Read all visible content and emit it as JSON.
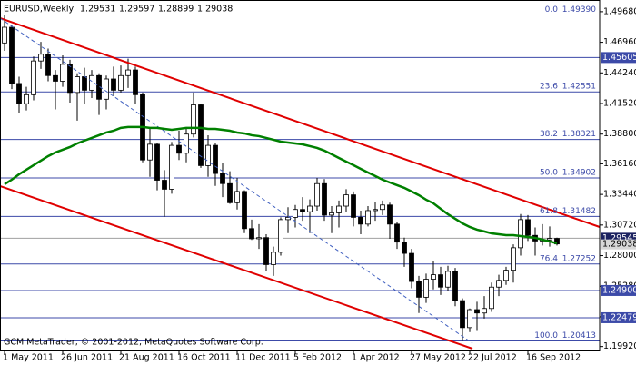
{
  "chart_data": {
    "type": "candlestick",
    "title": "EURUSD,Weekly",
    "watermark": "GCM MetaTrader, © 2001-2012, MetaQuotes Software Corp.",
    "categories": [
      "1 May 2011",
      null,
      null,
      null,
      null,
      null,
      null,
      null,
      "26 Jun 2011",
      null,
      null,
      null,
      null,
      null,
      null,
      null,
      "21 Aug 2011",
      null,
      null,
      null,
      null,
      null,
      null,
      null,
      "16 Oct 2011",
      null,
      null,
      null,
      null,
      null,
      null,
      null,
      "11 Dec 2011",
      null,
      null,
      null,
      null,
      null,
      null,
      null,
      "5 Feb 2012",
      null,
      null,
      null,
      null,
      null,
      null,
      null,
      "1 Apr 2012",
      null,
      null,
      null,
      null,
      null,
      null,
      null,
      "27 May 2012",
      null,
      null,
      null,
      null,
      null,
      null,
      null,
      "22 Jul 2012",
      null,
      null,
      null,
      null,
      null,
      null,
      null,
      "16 Sep 2012",
      null,
      null,
      null,
      null
    ],
    "open": [
      1.469,
      1.483,
      1.433,
      1.415,
      1.423,
      1.453,
      1.459,
      1.44,
      1.435,
      1.45,
      1.425,
      1.439,
      1.427,
      1.44,
      1.419,
      1.437,
      1.427,
      1.44,
      1.445,
      1.423,
      1.365,
      1.379,
      1.347,
      1.339,
      1.378,
      1.371,
      1.388,
      1.414,
      1.36,
      1.378,
      1.353,
      1.344,
      1.327,
      1.337,
      1.304,
      1.295,
      1.296,
      1.272,
      1.283,
      1.312,
      1.314,
      1.321,
      1.319,
      1.324,
      1.344,
      1.316,
      1.318,
      1.324,
      1.334,
      1.314,
      1.308,
      1.32,
      1.321,
      1.325,
      1.308,
      1.292,
      1.282,
      1.257,
      1.243,
      1.259,
      1.263,
      1.252,
      1.266,
      1.24,
      1.216,
      1.232,
      1.229,
      1.233,
      1.252,
      1.258,
      1.267,
      1.287,
      1.312,
      1.298,
      1.293,
      1.294,
      1.29531
    ],
    "high": [
      1.4939,
      1.485,
      1.439,
      1.43,
      1.457,
      1.47,
      1.464,
      1.445,
      1.458,
      1.454,
      1.442,
      1.447,
      1.445,
      1.442,
      1.44,
      1.448,
      1.449,
      1.455,
      1.448,
      1.425,
      1.394,
      1.38,
      1.356,
      1.381,
      1.391,
      1.394,
      1.425,
      1.415,
      1.387,
      1.38,
      1.362,
      1.355,
      1.349,
      1.338,
      1.312,
      1.308,
      1.299,
      1.288,
      1.314,
      1.323,
      1.325,
      1.332,
      1.33,
      1.349,
      1.348,
      1.324,
      1.329,
      1.339,
      1.337,
      1.32,
      1.324,
      1.328,
      1.329,
      1.327,
      1.31,
      1.296,
      1.286,
      1.262,
      1.264,
      1.275,
      1.27,
      1.271,
      1.269,
      1.242,
      1.233,
      1.239,
      1.244,
      1.256,
      1.263,
      1.27,
      1.29,
      1.317,
      1.316,
      1.305,
      1.308,
      1.306,
      1.29597
    ],
    "low": [
      1.462,
      1.428,
      1.407,
      1.409,
      1.418,
      1.446,
      1.435,
      1.41,
      1.43,
      1.416,
      1.4,
      1.415,
      1.42,
      1.405,
      1.41,
      1.422,
      1.425,
      1.429,
      1.415,
      1.363,
      1.35,
      1.338,
      1.3145,
      1.335,
      1.365,
      1.363,
      1.385,
      1.358,
      1.35,
      1.342,
      1.332,
      1.326,
      1.321,
      1.3,
      1.294,
      1.286,
      1.266,
      1.262,
      1.28,
      1.3,
      1.305,
      1.311,
      1.3,
      1.32,
      1.311,
      1.3,
      1.305,
      1.319,
      1.306,
      1.299,
      1.306,
      1.311,
      1.316,
      1.295,
      1.286,
      1.27,
      1.251,
      1.229,
      1.238,
      1.25,
      1.245,
      1.249,
      1.235,
      1.2041,
      1.212,
      1.213,
      1.224,
      1.23,
      1.244,
      1.254,
      1.256,
      1.28,
      1.293,
      1.28,
      1.289,
      1.288,
      1.28899
    ],
    "close": [
      1.483,
      1.433,
      1.415,
      1.423,
      1.453,
      1.459,
      1.44,
      1.435,
      1.45,
      1.425,
      1.439,
      1.427,
      1.44,
      1.419,
      1.437,
      1.427,
      1.44,
      1.445,
      1.423,
      1.365,
      1.379,
      1.347,
      1.339,
      1.378,
      1.371,
      1.388,
      1.414,
      1.36,
      1.378,
      1.353,
      1.344,
      1.327,
      1.337,
      1.304,
      1.295,
      1.296,
      1.272,
      1.283,
      1.312,
      1.314,
      1.321,
      1.319,
      1.324,
      1.344,
      1.316,
      1.318,
      1.324,
      1.334,
      1.314,
      1.308,
      1.32,
      1.321,
      1.325,
      1.308,
      1.292,
      1.282,
      1.257,
      1.243,
      1.259,
      1.263,
      1.252,
      1.266,
      1.24,
      1.216,
      1.232,
      1.229,
      1.233,
      1.252,
      1.258,
      1.267,
      1.287,
      1.312,
      1.298,
      1.293,
      1.294,
      1.29531,
      1.29038
    ],
    "up_color": "#ffffff",
    "down_color": "#000000",
    "ma": {
      "color": "#008000",
      "values": [
        1.3434,
        1.3475,
        1.3523,
        1.3563,
        1.3604,
        1.3644,
        1.3684,
        1.3717,
        1.3741,
        1.3765,
        1.3797,
        1.3822,
        1.3846,
        1.387,
        1.3894,
        1.391,
        1.3935,
        1.3943,
        1.3943,
        1.3943,
        1.3935,
        1.3935,
        1.3926,
        1.3918,
        1.3926,
        1.3935,
        1.3935,
        1.3935,
        1.3926,
        1.3926,
        1.3918,
        1.391,
        1.3894,
        1.3886,
        1.387,
        1.3862,
        1.3846,
        1.383,
        1.3813,
        1.3805,
        1.3797,
        1.3789,
        1.3773,
        1.3757,
        1.3733,
        1.3701,
        1.3668,
        1.3636,
        1.3604,
        1.3571,
        1.3539,
        1.3507,
        1.3475,
        1.345,
        1.3426,
        1.3402,
        1.337,
        1.3337,
        1.3297,
        1.3265,
        1.3216,
        1.3168,
        1.3128,
        1.3087,
        1.3055,
        1.3031,
        1.3015,
        1.2998,
        1.299,
        1.2982,
        1.2982,
        1.2974,
        1.2966,
        1.2958,
        1.2942,
        1.2926,
        1.291
      ]
    },
    "fibo": {
      "color": "#3c4aa8",
      "levels": [
        "0.0",
        "23.6",
        "38.2",
        "50.0",
        "61.8",
        "76.4",
        "100.0"
      ],
      "values": [
        1.4939,
        1.42551,
        1.38321,
        1.34902,
        1.31482,
        1.27252,
        1.20413
      ],
      "value_labels": [
        "1.49390",
        "1.42551",
        "1.38321",
        "1.34902",
        "1.31482",
        "1.27252",
        "1.20413"
      ]
    },
    "hlines": {
      "color": "#3c4aa8",
      "values": [
        1.45605,
        1.249,
        1.22479
      ],
      "value_labels": [
        "1.45605",
        "1.24900",
        "1.22479"
      ]
    },
    "bid": {
      "value": 1.29545,
      "color": "#1c2260"
    },
    "ylim": [
      1.1957,
      1.5072
    ],
    "yticks": [
      {
        "value": 1.4968,
        "label": "1.49680"
      },
      {
        "value": 1.4696,
        "label": "1.46960"
      },
      {
        "value": 1.4424,
        "label": "1.44240"
      },
      {
        "value": 1.4152,
        "label": "1.41520"
      },
      {
        "value": 1.388,
        "label": "1.38800"
      },
      {
        "value": 1.3616,
        "label": "1.36160"
      },
      {
        "value": 1.3344,
        "label": "1.33440"
      },
      {
        "value": 1.3072,
        "label": "1.30720"
      },
      {
        "value": 1.28,
        "label": "1.28000"
      },
      {
        "value": 1.2528,
        "label": "1.25280"
      },
      {
        "value": 1.2256,
        "label": "1.22560"
      },
      {
        "value": 1.1992,
        "label": "1.19920"
      }
    ]
  }
}
